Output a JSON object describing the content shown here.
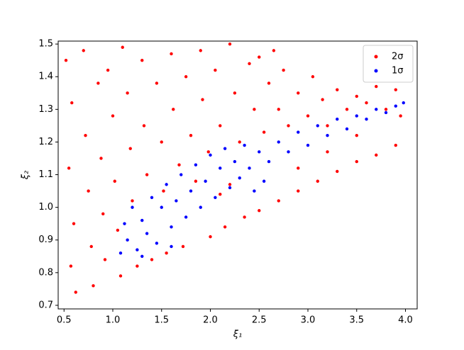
{
  "chart_data": {
    "type": "scatter",
    "xlabel": "ξ₁",
    "ylabel": "ξ₂",
    "xlim": [
      0.44,
      4.12
    ],
    "ylim": [
      0.689,
      1.509
    ],
    "xticks": [
      0.5,
      {
        "value": 1,
        "label": "1.0"
      },
      1.5,
      {
        "value": 2,
        "label": "2.0"
      },
      2.5,
      {
        "value": 3,
        "label": "3.0"
      },
      3.5,
      {
        "value": 4,
        "label": "4.0"
      }
    ],
    "yticks": [
      0.7,
      0.8,
      0.9,
      {
        "value": 1,
        "label": "1.0"
      },
      1.1,
      1.2,
      1.3,
      1.4,
      1.5
    ],
    "legend": "upper right",
    "series": [
      {
        "name": "2σ",
        "color": "#ff0000",
        "x": [
          0.52,
          0.58,
          0.55,
          0.6,
          0.57,
          0.62,
          0.7,
          0.72,
          0.75,
          0.78,
          0.8,
          0.85,
          0.88,
          0.9,
          0.92,
          0.95,
          1.0,
          1.02,
          1.05,
          1.08,
          1.1,
          1.15,
          1.18,
          1.2,
          1.25,
          1.3,
          1.32,
          1.35,
          1.4,
          1.45,
          1.5,
          1.52,
          1.55,
          1.6,
          1.62,
          1.68,
          1.72,
          1.75,
          1.8,
          1.85,
          1.9,
          1.92,
          1.98,
          2.0,
          2.05,
          2.1,
          2.15,
          2.2,
          2.25,
          2.3,
          2.35,
          2.4,
          2.45,
          2.5,
          2.55,
          2.6,
          2.65,
          2.7,
          2.75,
          2.8,
          2.9,
          3.0,
          3.05,
          3.15,
          3.2,
          3.3,
          3.4,
          3.5,
          3.6,
          3.7,
          3.8,
          3.9,
          3.95,
          2.5,
          2.7,
          2.9,
          3.1,
          3.3,
          3.5,
          3.7,
          3.9,
          2.9,
          3.2,
          3.5,
          2.1,
          2.2
        ],
        "y": [
          1.45,
          1.32,
          1.12,
          0.95,
          0.82,
          0.74,
          1.48,
          1.22,
          1.05,
          0.88,
          0.76,
          1.38,
          1.15,
          0.98,
          0.84,
          1.42,
          1.28,
          1.08,
          0.93,
          0.79,
          1.49,
          1.35,
          1.18,
          1.02,
          0.82,
          1.45,
          1.25,
          1.1,
          0.84,
          1.38,
          1.2,
          1.05,
          0.86,
          1.47,
          1.3,
          1.13,
          0.88,
          1.4,
          1.22,
          1.08,
          1.48,
          1.33,
          1.17,
          0.91,
          1.42,
          1.25,
          0.94,
          1.5,
          1.35,
          1.2,
          0.97,
          1.44,
          1.3,
          1.46,
          1.23,
          1.38,
          1.48,
          1.3,
          1.42,
          1.25,
          1.35,
          1.28,
          1.4,
          1.33,
          1.25,
          1.36,
          1.3,
          1.34,
          1.32,
          1.37,
          1.3,
          1.36,
          1.28,
          0.99,
          1.02,
          1.05,
          1.08,
          1.11,
          1.14,
          1.16,
          1.19,
          1.12,
          1.17,
          1.22,
          1.04,
          1.07
        ]
      },
      {
        "name": "1σ",
        "color": "#0000ff",
        "x": [
          1.08,
          1.12,
          1.15,
          1.2,
          1.25,
          1.3,
          1.35,
          1.4,
          1.45,
          1.5,
          1.55,
          1.6,
          1.65,
          1.7,
          1.75,
          1.8,
          1.85,
          1.9,
          1.95,
          2.0,
          2.05,
          2.1,
          2.15,
          2.2,
          2.25,
          2.3,
          2.35,
          2.4,
          2.5,
          2.6,
          2.7,
          2.8,
          2.9,
          3.0,
          3.1,
          3.2,
          3.3,
          3.4,
          3.5,
          3.6,
          3.7,
          3.8,
          3.9,
          3.98,
          2.45,
          2.55,
          1.3,
          1.6
        ],
        "y": [
          0.86,
          0.95,
          0.9,
          1.0,
          0.87,
          0.96,
          0.92,
          1.03,
          0.89,
          1.0,
          1.07,
          0.94,
          1.02,
          1.1,
          0.97,
          1.05,
          1.13,
          1.0,
          1.08,
          1.16,
          1.03,
          1.12,
          1.18,
          1.06,
          1.14,
          1.09,
          1.19,
          1.12,
          1.17,
          1.14,
          1.2,
          1.17,
          1.23,
          1.19,
          1.25,
          1.22,
          1.27,
          1.24,
          1.28,
          1.27,
          1.3,
          1.29,
          1.31,
          1.32,
          1.05,
          1.08,
          0.85,
          0.88
        ]
      }
    ]
  }
}
